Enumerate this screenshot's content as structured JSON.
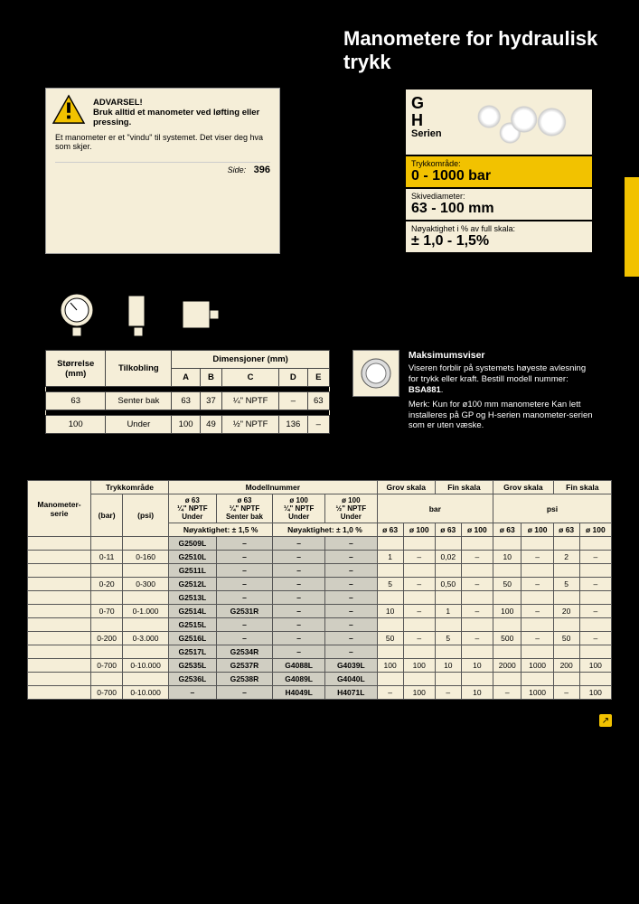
{
  "title": "Manometere for hydraulisk trykk",
  "warning": {
    "heading": "ADVARSEL!",
    "bold": "Bruk alltid et manometer ved løfting eller pressing.",
    "body": "Et manometer er et \"vindu\" til systemet. Det viser deg hva som skjer.",
    "side_label": "Side:",
    "side_page": "396"
  },
  "series": {
    "line1": "G",
    "line2": "H",
    "label": "Serien"
  },
  "specs": [
    {
      "label": "Trykkområde:",
      "value": "0 - 1000 bar",
      "bg": "yellow"
    },
    {
      "label": "Skivediameter:",
      "value": "63 - 100 mm",
      "bg": "cream"
    },
    {
      "label": "Nøyaktighet i % av full skala:",
      "value": "± 1,0 - 1,5%",
      "bg": "cream"
    }
  ],
  "dim_table": {
    "headers": {
      "size": "Størrelse\n(mm)",
      "conn": "Tilkobling",
      "dim": "Dimensjoner (mm)",
      "cols": [
        "A",
        "B",
        "C",
        "D",
        "E"
      ]
    },
    "rows": [
      {
        "size": "63",
        "conn": "Senter bak",
        "A": "63",
        "B": "37",
        "C": "¼\" NPTF",
        "D": "–",
        "E": "63"
      },
      {
        "size": "100",
        "conn": "Under",
        "A": "100",
        "B": "49",
        "C": "½\" NPTF",
        "D": "136",
        "E": "–"
      }
    ]
  },
  "max": {
    "title": "Maksimumsviser",
    "body": "Viseren forblir på systemets høyeste avlesning for trykk eller kraft. Bestill modell nummer:",
    "model": "BSA881",
    "note": "Merk: Kun for ø100 mm manometere Kan lett installeres på GP og H-serien manometer-serien som er uten væske."
  },
  "main_headers": {
    "series": "Manometer-\nserie",
    "range": "Trykkområde",
    "model": "Modellnummer",
    "grov": "Grov skala",
    "fin": "Fin skala",
    "m1": "ø 63\n¼\" NPTF\nUnder",
    "m2": "ø 63\n¼\" NPTF\nSenter bak",
    "m3": "ø 100\n¼\" NPTF\nUnder",
    "m4": "ø 100\n½\" NPTF\nUnder",
    "bar": "bar",
    "psi": "psi",
    "unit_bar": "(bar)",
    "unit_psi": "(psi)",
    "acc15": "Nøyaktighet: ± 1,5 %",
    "acc10": "Nøyaktighet: ± 1,0 %",
    "d63": "ø 63",
    "d100": "ø 100"
  },
  "main_rows": [
    {
      "bar": "",
      "psi": "",
      "m": [
        "G2509L",
        "–",
        "–",
        "–"
      ],
      "s": [
        "",
        "",
        "",
        "",
        "",
        "",
        "",
        ""
      ]
    },
    {
      "bar": "0-11",
      "psi": "0-160",
      "m": [
        "G2510L",
        "–",
        "–",
        "–"
      ],
      "s": [
        "1",
        "–",
        "0,02",
        "–",
        "10",
        "–",
        "2",
        "–"
      ]
    },
    {
      "bar": "",
      "psi": "",
      "m": [
        "G2511L",
        "–",
        "–",
        "–"
      ],
      "s": [
        "",
        "",
        "",
        "",
        "",
        "",
        "",
        ""
      ]
    },
    {
      "bar": "0-20",
      "psi": "0-300",
      "m": [
        "G2512L",
        "–",
        "–",
        "–"
      ],
      "s": [
        "5",
        "–",
        "0,50",
        "–",
        "50",
        "–",
        "5",
        "–"
      ]
    },
    {
      "bar": "",
      "psi": "",
      "m": [
        "G2513L",
        "–",
        "–",
        "–"
      ],
      "s": [
        "",
        "",
        "",
        "",
        "",
        "",
        "",
        ""
      ]
    },
    {
      "bar": "0-70",
      "psi": "0-1.000",
      "m": [
        "G2514L",
        "G2531R",
        "–",
        "–"
      ],
      "s": [
        "10",
        "–",
        "1",
        "–",
        "100",
        "–",
        "20",
        "–"
      ]
    },
    {
      "bar": "",
      "psi": "",
      "m": [
        "G2515L",
        "–",
        "–",
        "–"
      ],
      "s": [
        "",
        "",
        "",
        "",
        "",
        "",
        "",
        ""
      ]
    },
    {
      "bar": "0-200",
      "psi": "0-3.000",
      "m": [
        "G2516L",
        "–",
        "–",
        "–"
      ],
      "s": [
        "50",
        "–",
        "5",
        "–",
        "500",
        "–",
        "50",
        "–"
      ]
    },
    {
      "bar": "",
      "psi": "",
      "m": [
        "G2517L",
        "G2534R",
        "–",
        "–"
      ],
      "s": [
        "",
        "",
        "",
        "",
        "",
        "",
        "",
        ""
      ]
    },
    {
      "bar": "0-700",
      "psi": "0-10.000",
      "m": [
        "G2535L",
        "G2537R",
        "G4088L",
        "G4039L"
      ],
      "s": [
        "100",
        "100",
        "10",
        "10",
        "2000",
        "1000",
        "200",
        "100"
      ]
    },
    {
      "bar": "",
      "psi": "",
      "m": [
        "G2536L",
        "G2538R",
        "G4089L",
        "G4040L"
      ],
      "s": [
        "",
        "",
        "",
        "",
        "",
        "",
        "",
        ""
      ]
    },
    {
      "bar": "0-700",
      "psi": "0-10.000",
      "m": [
        "–",
        "–",
        "H4049L",
        "H4071L"
      ],
      "s": [
        "–",
        "100",
        "–",
        "10",
        "–",
        "1000",
        "–",
        "100"
      ]
    }
  ],
  "colors": {
    "yellow": "#f2c200",
    "cream": "#f5eed8",
    "model_bg": "#d0cec2"
  }
}
